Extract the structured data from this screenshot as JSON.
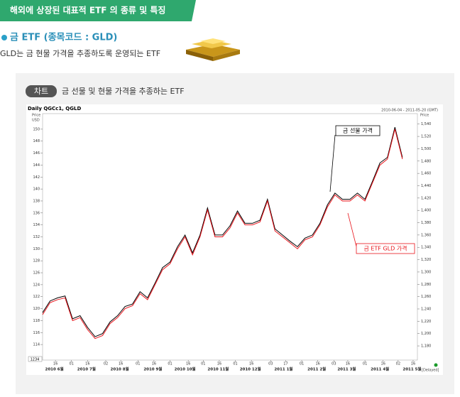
{
  "header": {
    "title": "해외에 상장된 대표적 ETF 의 종류 및 특징"
  },
  "section": {
    "title": "금 ETF (종목코드 : GLD)",
    "description": "GLD는 금 현물 가격을 추종하도록 운영되는 ETF"
  },
  "chart_box": {
    "tag": "차트",
    "caption": "금 선물 및 현물 가격을 추종하는 ETF"
  },
  "chart_data": {
    "type": "line",
    "title": "Daily QGCc1, QGLD",
    "date_range": "2010-06-04 - 2011-05-20 (GMT)",
    "y_label": "Price",
    "y_unit": "USD",
    "y2_label": "Price",
    "footer_left": "1234",
    "footer_right": "[Delayed]",
    "x": [
      "2010-06-04",
      "2010-06-11",
      "2010-06-18",
      "2010-06-25",
      "2010-07-02",
      "2010-07-09",
      "2010-07-16",
      "2010-07-23",
      "2010-07-30",
      "2010-08-06",
      "2010-08-13",
      "2010-08-20",
      "2010-08-27",
      "2010-09-03",
      "2010-09-10",
      "2010-09-17",
      "2010-09-24",
      "2010-10-01",
      "2010-10-08",
      "2010-10-15",
      "2010-10-22",
      "2010-10-29",
      "2010-11-05",
      "2010-11-12",
      "2010-11-19",
      "2010-11-26",
      "2010-12-03",
      "2010-12-10",
      "2010-12-17",
      "2010-12-24",
      "2010-12-31",
      "2011-01-07",
      "2011-01-14",
      "2011-01-21",
      "2011-01-28",
      "2011-02-04",
      "2011-02-11",
      "2011-02-18",
      "2011-02-25",
      "2011-03-04",
      "2011-03-11",
      "2011-03-18",
      "2011-03-25",
      "2011-04-01",
      "2011-04-08",
      "2011-04-15",
      "2011-04-22",
      "2011-04-29",
      "2011-05-06"
    ],
    "xlim": [
      "2010-06-04",
      "2011-05-20"
    ],
    "xticks": [
      {
        "value": "2010-06-16",
        "label": "16"
      },
      {
        "value": "2010-07-01",
        "label": "01"
      },
      {
        "value": "2010-07-16",
        "label": "16"
      },
      {
        "value": "2010-08-02",
        "label": "02"
      },
      {
        "value": "2010-08-16",
        "label": "16"
      },
      {
        "value": "2010-09-01",
        "label": "01"
      },
      {
        "value": "2010-09-16",
        "label": "16"
      },
      {
        "value": "2010-10-01",
        "label": "01"
      },
      {
        "value": "2010-10-18",
        "label": "16"
      },
      {
        "value": "2010-11-01",
        "label": "01"
      },
      {
        "value": "2010-11-16",
        "label": "16"
      },
      {
        "value": "2010-12-01",
        "label": "01"
      },
      {
        "value": "2010-12-16",
        "label": "16"
      },
      {
        "value": "2011-01-03",
        "label": "03"
      },
      {
        "value": "2011-01-17",
        "label": "17"
      },
      {
        "value": "2011-02-01",
        "label": "01"
      },
      {
        "value": "2011-02-16",
        "label": "16"
      },
      {
        "value": "2011-03-03",
        "label": "03"
      },
      {
        "value": "2011-03-16",
        "label": "16"
      },
      {
        "value": "2011-04-01",
        "label": "01"
      },
      {
        "value": "2011-04-18",
        "label": "16"
      },
      {
        "value": "2011-05-02",
        "label": "02"
      },
      {
        "value": "2011-05-16",
        "label": "16"
      }
    ],
    "month_ticks": [
      {
        "value": "2010-06-15",
        "label": "2010 6월"
      },
      {
        "value": "2010-07-15",
        "label": "2010 7월"
      },
      {
        "value": "2010-08-15",
        "label": "2010 8월"
      },
      {
        "value": "2010-09-15",
        "label": "2010 9월"
      },
      {
        "value": "2010-10-15",
        "label": "2010 10월"
      },
      {
        "value": "2010-11-15",
        "label": "2010 11월"
      },
      {
        "value": "2010-12-15",
        "label": "2010 12월"
      },
      {
        "value": "2011-01-15",
        "label": "2011 1월"
      },
      {
        "value": "2011-02-15",
        "label": "2011 2월"
      },
      {
        "value": "2011-03-15",
        "label": "2011 3월"
      },
      {
        "value": "2011-04-15",
        "label": "2011 4월"
      },
      {
        "value": "2011-05-15",
        "label": "2011 5월"
      }
    ],
    "ylim": [
      111.4,
      152.6
    ],
    "yticks": [
      114,
      116,
      118,
      120,
      122,
      124,
      126,
      128,
      130,
      132,
      134,
      136,
      138,
      140,
      142,
      144,
      146,
      148,
      150
    ],
    "y2lim": [
      1157,
      1557
    ],
    "y2ticks": [
      {
        "value": 1180,
        "label": "1,180"
      },
      {
        "value": 1200,
        "label": "1,200"
      },
      {
        "value": 1220,
        "label": "1,220"
      },
      {
        "value": 1240,
        "label": "1,240"
      },
      {
        "value": 1260,
        "label": "1,260"
      },
      {
        "value": 1280,
        "label": "1,280"
      },
      {
        "value": 1300,
        "label": "1,300"
      },
      {
        "value": 1320,
        "label": "1,320"
      },
      {
        "value": 1340,
        "label": "1,340"
      },
      {
        "value": 1360,
        "label": "1,360"
      },
      {
        "value": 1380,
        "label": "1,380"
      },
      {
        "value": 1400,
        "label": "1,400"
      },
      {
        "value": 1420,
        "label": "1,420"
      },
      {
        "value": 1440,
        "label": "1,440"
      },
      {
        "value": 1460,
        "label": "1,460"
      },
      {
        "value": 1480,
        "label": "1,480"
      },
      {
        "value": 1500,
        "label": "1,500"
      },
      {
        "value": 1520,
        "label": "1,520"
      },
      {
        "value": 1540,
        "label": "1,540"
      }
    ],
    "series": [
      {
        "name": "금 선물 가격",
        "color": "#000000",
        "axis": "y2",
        "values": [
          1234,
          1253,
          1258,
          1261,
          1224,
          1229,
          1210,
          1195,
          1200,
          1219,
          1229,
          1244,
          1248,
          1268,
          1258,
          1282,
          1307,
          1316,
          1341,
          1360,
          1331,
          1360,
          1404,
          1360,
          1360,
          1375,
          1399,
          1379,
          1379,
          1384,
          1418,
          1370,
          1360,
          1350,
          1341,
          1355,
          1360,
          1379,
          1409,
          1428,
          1418,
          1418,
          1428,
          1418,
          1447,
          1477,
          1486,
          1535,
          1486
        ]
      },
      {
        "name": "금 ETF GLD 가격",
        "color": "#e8141b",
        "axis": "y",
        "values": [
          119,
          121,
          121.5,
          121.8,
          118,
          118.5,
          116.5,
          115,
          115.5,
          117.5,
          118.5,
          120,
          120.5,
          122.5,
          121.5,
          124,
          126.5,
          127.5,
          130,
          132,
          129,
          132,
          136.5,
          132,
          132,
          133.5,
          136,
          134,
          134,
          134.5,
          138,
          133,
          132,
          131,
          130,
          131.5,
          132,
          134,
          137,
          139,
          138,
          138,
          139,
          138,
          141,
          144,
          145,
          150,
          145
        ]
      }
    ]
  }
}
